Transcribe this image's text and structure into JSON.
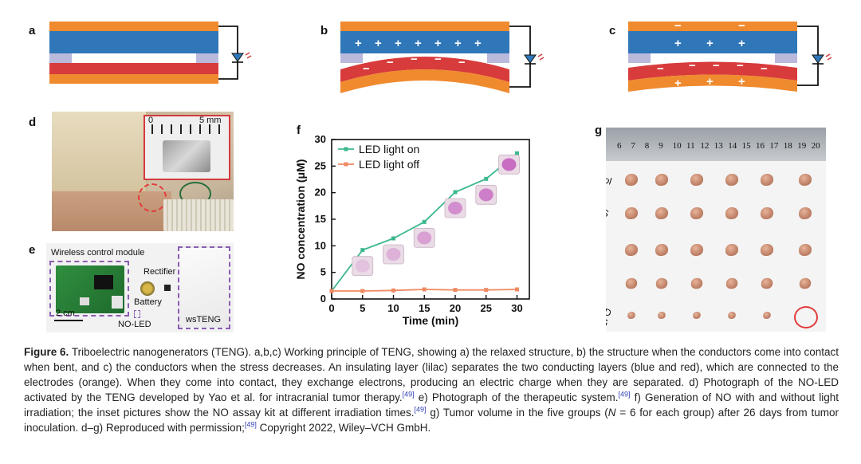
{
  "panel_labels": {
    "a": "a",
    "b": "b",
    "c": "c",
    "d": "d",
    "e": "e",
    "f": "f",
    "g": "g"
  },
  "panel_b": {
    "top_charge": "+",
    "bottom_charge": "−"
  },
  "panel_c": {
    "top_outer": "−",
    "top_charge": "+",
    "bottom_charge": "−",
    "bottom_inner": "+"
  },
  "panel_d": {
    "ruler_start": "0",
    "ruler_end": "5 mm"
  },
  "panel_e": {
    "module_label": "Wireless control module",
    "rectifier_label": "Rectifier",
    "battery_label": "Battery",
    "scale_label": "2 cm",
    "noled_label": "NO-LED",
    "wsteng_label": "wsTENG"
  },
  "chart_data": {
    "type": "line",
    "ylabel": "NO concentration (μM)",
    "xlabel": "Time (min)",
    "x": [
      0,
      5,
      10,
      15,
      20,
      25,
      30
    ],
    "xlim": [
      0,
      32
    ],
    "ylim": [
      0,
      30
    ],
    "xticks": [
      "0",
      "5",
      "10",
      "15",
      "20",
      "25",
      "30"
    ],
    "yticks": [
      "0",
      "5",
      "10",
      "15",
      "20",
      "25",
      "30"
    ],
    "legend_position": "top-left",
    "series": [
      {
        "name": "LED light on",
        "values": [
          1.5,
          9.2,
          11.4,
          14.5,
          20.1,
          22.6,
          27.4
        ],
        "color": "#3cb88f"
      },
      {
        "name": "LED light off",
        "values": [
          1.5,
          1.5,
          1.6,
          1.8,
          1.7,
          1.7,
          1.8
        ],
        "color": "#ef8a62"
      }
    ]
  },
  "panel_g": {
    "ruler_numbers": [
      "6",
      "7",
      "8",
      "9",
      "10",
      "11",
      "12",
      "13",
      "14",
      "15",
      "16",
      "17",
      "18",
      "19",
      "20"
    ],
    "groups": [
      "Control",
      "PDMS",
      "PDMS-LED+\nwsTENG",
      "NO-LED",
      "NO-LED\n+wsTENG"
    ]
  },
  "caption": {
    "figure_label": "Figure 6.",
    "text_1": " Triboelectric nanogenerators (TENG). a,b,c) Working principle of TENG, showing a) the relaxed structure, b) the structure when the conductors come into contact when bent, and c) the conductors when the stress decreases. An insulating layer (lilac) separates the two conducting layers (blue and red), which are connected to the electrodes (orange). When they come into contact, they exchange electrons, producing an electric charge when they are separated. d) Photograph of the NO-LED activated by the TENG developed by Yao et al. for intracranial tumor therapy.",
    "ref_1": "[49]",
    "text_2": " e) Photograph of the therapeutic system.",
    "ref_2": "[49]",
    "text_3": " f) Generation of NO with and without light irradiation; the inset pictures show the NO assay kit at different irradiation times.",
    "ref_3": "[49]",
    "text_4": " g) Tumor volume in the five groups (",
    "n_italic": "N",
    "text_5": " = 6 for each group) after 26 days from tumor inoculation. d–g) Reproduced with permission;",
    "ref_4": "[49]",
    "text_6": " Copyright 2022, Wiley–VCH GmbH."
  },
  "colors": {
    "orange": "#ef8a2e",
    "blue": "#2f77b8",
    "red": "#d83b3b",
    "lilac": "#b9b9dc"
  }
}
